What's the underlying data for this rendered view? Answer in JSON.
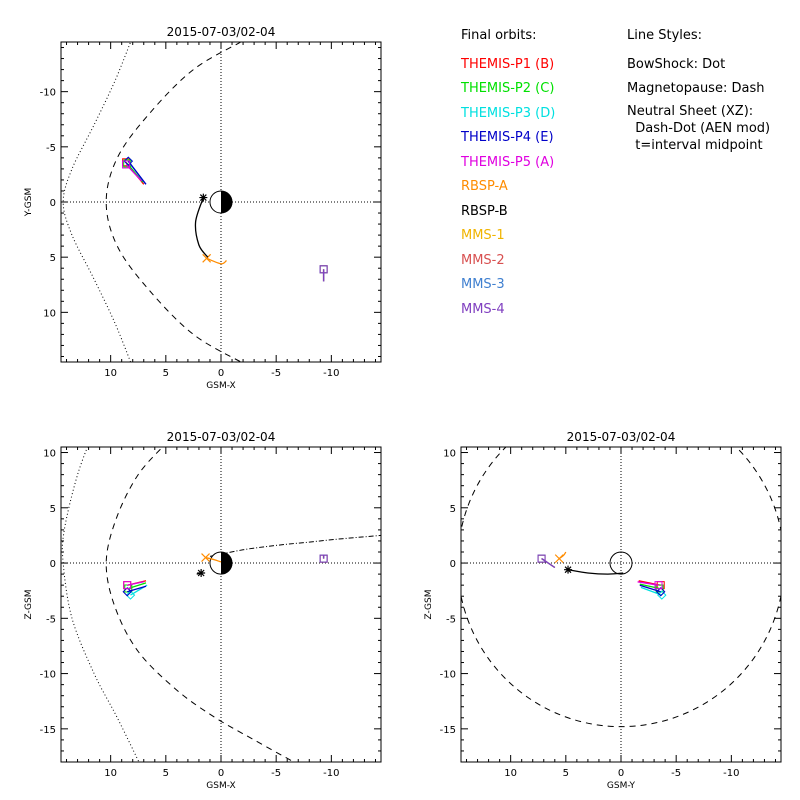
{
  "legend": {
    "heading": "Final orbits:",
    "items": [
      {
        "label": "THEMIS-P1 (B)",
        "color": "#ff0000"
      },
      {
        "label": "THEMIS-P2 (C)",
        "color": "#00e000"
      },
      {
        "label": "THEMIS-P3 (D)",
        "color": "#00e0e0"
      },
      {
        "label": "THEMIS-P4 (E)",
        "color": "#0000c8"
      },
      {
        "label": "THEMIS-P5 (A)",
        "color": "#e000e0"
      },
      {
        "label": "RBSP-A",
        "color": "#ff8c00"
      },
      {
        "label": "RBSP-B",
        "color": "#000000"
      },
      {
        "label": "MMS-1",
        "color": "#f0b400"
      },
      {
        "label": "MMS-2",
        "color": "#d85050"
      },
      {
        "label": "MMS-3",
        "color": "#4080d0"
      },
      {
        "label": "MMS-4",
        "color": "#8040c0"
      }
    ]
  },
  "line_styles": {
    "heading": "Line Styles:",
    "lines": [
      "BowShock: Dot",
      "Magnetopause: Dash",
      "Neutral Sheet (XZ):",
      "  Dash-Dot (AEN mod)",
      "  t=interval midpoint"
    ]
  },
  "chart_data": [
    {
      "type": "line",
      "title": "2015-07-03/02-04",
      "xlabel": "GSM-X",
      "ylabel": "Y-GSM",
      "xlim": [
        14.5,
        -14.5
      ],
      "ylim": [
        14.5,
        -14.5
      ],
      "xticks": [
        10,
        5,
        0,
        -5,
        -10
      ],
      "xtick_labels": [
        "10",
        "5",
        "0",
        "-5",
        "-10"
      ],
      "yticks": [
        -10,
        -5,
        0,
        5,
        10
      ],
      "ytick_labels": [
        "-10",
        "-5",
        "0",
        "5",
        "10"
      ],
      "earth": "day-night",
      "bowshock": [
        [
          8.0,
          -15
        ],
        [
          9.6,
          -11
        ],
        [
          11.5,
          -7
        ],
        [
          13.5,
          -3
        ],
        [
          14.3,
          0
        ],
        [
          13.5,
          3
        ],
        [
          11.5,
          7
        ],
        [
          9.6,
          11
        ],
        [
          8.0,
          15
        ]
      ],
      "magnetopause": [
        [
          -1.8,
          -14.5
        ],
        [
          2.5,
          -12
        ],
        [
          6.5,
          -8
        ],
        [
          9.4,
          -4
        ],
        [
          10.4,
          0
        ],
        [
          9.4,
          4
        ],
        [
          6.5,
          8
        ],
        [
          2.5,
          12
        ],
        [
          -1.8,
          14.5
        ]
      ],
      "orbits": [
        {
          "series": "THEMIS-P1 (B)",
          "points": [
            [
              8.6,
              -3.6
            ],
            [
              7.0,
              -1.6
            ]
          ],
          "marker": "square"
        },
        {
          "series": "THEMIS-P2 (C)",
          "points": [
            [
              8.5,
              -3.5
            ],
            [
              7.1,
              -1.8
            ]
          ],
          "marker": "square"
        },
        {
          "series": "THEMIS-P3 (D)",
          "points": [
            [
              8.4,
              -3.7
            ],
            [
              6.9,
              -1.7
            ]
          ],
          "marker": "diamond"
        },
        {
          "series": "THEMIS-P4 (E)",
          "points": [
            [
              8.4,
              -3.7
            ],
            [
              6.8,
              -1.6
            ]
          ],
          "marker": "diamond"
        },
        {
          "series": "THEMIS-P5 (A)",
          "points": [
            [
              8.6,
              -3.4
            ],
            [
              7.2,
              -1.9
            ]
          ],
          "marker": "square"
        },
        {
          "series": "RBSP-A",
          "points": [
            [
              1.3,
              5.1
            ],
            [
              0.0,
              5.6
            ],
            [
              -0.5,
              5.3
            ]
          ],
          "marker": "x"
        },
        {
          "series": "RBSP-B",
          "points": [
            [
              1.6,
              -0.4
            ],
            [
              2.3,
              1.8
            ],
            [
              2.0,
              3.9
            ],
            [
              1.2,
              5.0
            ]
          ],
          "marker": "asterisk"
        },
        {
          "series": "MMS-1",
          "points": [
            [
              -9.3,
              6.1
            ],
            [
              -9.3,
              7.2
            ]
          ],
          "marker": "square"
        },
        {
          "series": "MMS-2",
          "points": [
            [
              -9.3,
              6.1
            ],
            [
              -9.3,
              7.2
            ]
          ],
          "marker": "square"
        },
        {
          "series": "MMS-3",
          "points": [
            [
              -9.3,
              6.1
            ],
            [
              -9.3,
              7.2
            ]
          ],
          "marker": "square"
        },
        {
          "series": "MMS-4",
          "points": [
            [
              -9.3,
              6.1
            ],
            [
              -9.3,
              7.2
            ]
          ],
          "marker": "square"
        }
      ]
    },
    {
      "type": "line",
      "title": "2015-07-03/02-04",
      "xlabel": "GSM-X",
      "ylabel": "Z-GSM",
      "xlim": [
        14.5,
        -14.5
      ],
      "ylim": [
        -18,
        10.5
      ],
      "xticks": [
        10,
        5,
        0,
        -5,
        -10
      ],
      "xtick_labels": [
        "10",
        "5",
        "0",
        "-5",
        "-10"
      ],
      "yticks": [
        10,
        5,
        0,
        -5,
        -10,
        -15
      ],
      "ytick_labels": [
        "10",
        "5",
        "0",
        "-5",
        "-10",
        "-15"
      ],
      "earth": "day-night",
      "bowshock": [
        [
          11.5,
          12
        ],
        [
          13.0,
          8
        ],
        [
          14.2,
          3
        ],
        [
          14.3,
          0
        ],
        [
          13.5,
          -5
        ],
        [
          11.5,
          -10
        ],
        [
          9.4,
          -14
        ],
        [
          7.2,
          -18.5
        ]
      ],
      "magnetopause": [
        [
          4.8,
          11
        ],
        [
          7.5,
          8
        ],
        [
          9.5,
          4
        ],
        [
          10.4,
          0
        ],
        [
          9.6,
          -4
        ],
        [
          7.5,
          -8
        ],
        [
          4.0,
          -11.5
        ],
        [
          0.5,
          -14
        ],
        [
          -3.0,
          -16
        ],
        [
          -7.5,
          -18.5
        ]
      ],
      "neutral_sheet": [
        [
          1.0,
          0.6
        ],
        [
          -2.0,
          1.2
        ],
        [
          -5.0,
          1.6
        ],
        [
          -8.0,
          1.9
        ],
        [
          -11.0,
          2.2
        ],
        [
          -14.5,
          2.5
        ]
      ],
      "orbits": [
        {
          "series": "THEMIS-P1 (B)",
          "points": [
            [
              8.5,
              -2.0
            ],
            [
              6.8,
              -1.6
            ]
          ],
          "marker": "square"
        },
        {
          "series": "THEMIS-P2 (C)",
          "points": [
            [
              8.4,
              -2.3
            ],
            [
              6.8,
              -1.8
            ]
          ],
          "marker": "square"
        },
        {
          "series": "THEMIS-P3 (D)",
          "points": [
            [
              8.2,
              -2.9
            ],
            [
              6.7,
              -2.0
            ]
          ],
          "marker": "diamond"
        },
        {
          "series": "THEMIS-P4 (E)",
          "points": [
            [
              8.5,
              -2.6
            ],
            [
              6.8,
              -2.1
            ]
          ],
          "marker": "diamond"
        },
        {
          "series": "THEMIS-P5 (A)",
          "points": [
            [
              8.5,
              -2.0
            ],
            [
              7.0,
              -1.7
            ]
          ],
          "marker": "square"
        },
        {
          "series": "RBSP-A",
          "points": [
            [
              1.4,
              0.5
            ],
            [
              0.6,
              0.3
            ],
            [
              0.0,
              0.1
            ]
          ],
          "marker": "x"
        },
        {
          "series": "RBSP-B",
          "points": [
            [
              1.8,
              -0.9
            ],
            [
              2.2,
              -1.0
            ]
          ],
          "marker": "asterisk"
        },
        {
          "series": "MMS-1",
          "points": [
            [
              -9.3,
              0.4
            ],
            [
              -9.3,
              0.7
            ]
          ],
          "marker": "square"
        },
        {
          "series": "MMS-2",
          "points": [
            [
              -9.3,
              0.4
            ],
            [
              -9.3,
              0.7
            ]
          ],
          "marker": "square"
        },
        {
          "series": "MMS-3",
          "points": [
            [
              -9.3,
              0.4
            ],
            [
              -9.3,
              0.7
            ]
          ],
          "marker": "square"
        },
        {
          "series": "MMS-4",
          "points": [
            [
              -9.3,
              0.4
            ],
            [
              -9.3,
              0.7
            ]
          ],
          "marker": "square"
        }
      ]
    },
    {
      "type": "line",
      "title": "2015-07-03/02-04",
      "xlabel": "GSM-Y",
      "ylabel": "Z-GSM",
      "xlim": [
        14.5,
        -14.5
      ],
      "ylim": [
        -18,
        10.5
      ],
      "xticks": [
        10,
        5,
        0,
        -5,
        -10
      ],
      "xtick_labels": [
        "10",
        "5",
        "0",
        "-5",
        "-10"
      ],
      "yticks": [
        10,
        5,
        0,
        -5,
        -10,
        -15
      ],
      "ytick_labels": [
        "10",
        "5",
        "0",
        "-5",
        "-10",
        "-15"
      ],
      "earth": "circle",
      "magnetopause_circle": {
        "center": [
          0,
          0
        ],
        "radius": 14.8
      },
      "orbits": [
        {
          "series": "THEMIS-P1 (B)",
          "points": [
            [
              -3.6,
              -2.0
            ],
            [
              -1.6,
              -1.6
            ]
          ],
          "marker": "square"
        },
        {
          "series": "THEMIS-P2 (C)",
          "points": [
            [
              -3.5,
              -2.3
            ],
            [
              -1.7,
              -1.9
            ]
          ],
          "marker": "square"
        },
        {
          "series": "THEMIS-P3 (D)",
          "points": [
            [
              -3.7,
              -2.9
            ],
            [
              -1.8,
              -2.2
            ]
          ],
          "marker": "diamond"
        },
        {
          "series": "THEMIS-P4 (E)",
          "points": [
            [
              -3.6,
              -2.6
            ],
            [
              -1.7,
              -2.0
            ]
          ],
          "marker": "diamond"
        },
        {
          "series": "THEMIS-P5 (A)",
          "points": [
            [
              -3.4,
              -2.0
            ],
            [
              -1.5,
              -1.7
            ]
          ],
          "marker": "square"
        },
        {
          "series": "RBSP-A",
          "points": [
            [
              5.6,
              0.4
            ],
            [
              5.2,
              0.7
            ],
            [
              5.0,
              1.0
            ]
          ],
          "marker": "x"
        },
        {
          "series": "RBSP-B",
          "points": [
            [
              4.8,
              -0.6
            ],
            [
              3.0,
              -0.9
            ],
            [
              1.2,
              -1.0
            ],
            [
              -0.2,
              -0.9
            ]
          ],
          "marker": "asterisk"
        },
        {
          "series": "MMS-1",
          "points": [
            [
              7.2,
              0.4
            ],
            [
              6.0,
              -0.4
            ]
          ],
          "marker": "square"
        },
        {
          "series": "MMS-2",
          "points": [
            [
              7.2,
              0.4
            ],
            [
              6.0,
              -0.4
            ]
          ],
          "marker": "square"
        },
        {
          "series": "MMS-3",
          "points": [
            [
              7.2,
              0.4
            ],
            [
              6.0,
              -0.4
            ]
          ],
          "marker": "square"
        },
        {
          "series": "MMS-4",
          "points": [
            [
              7.2,
              0.4
            ],
            [
              6.0,
              -0.4
            ]
          ],
          "marker": "square"
        }
      ]
    }
  ]
}
